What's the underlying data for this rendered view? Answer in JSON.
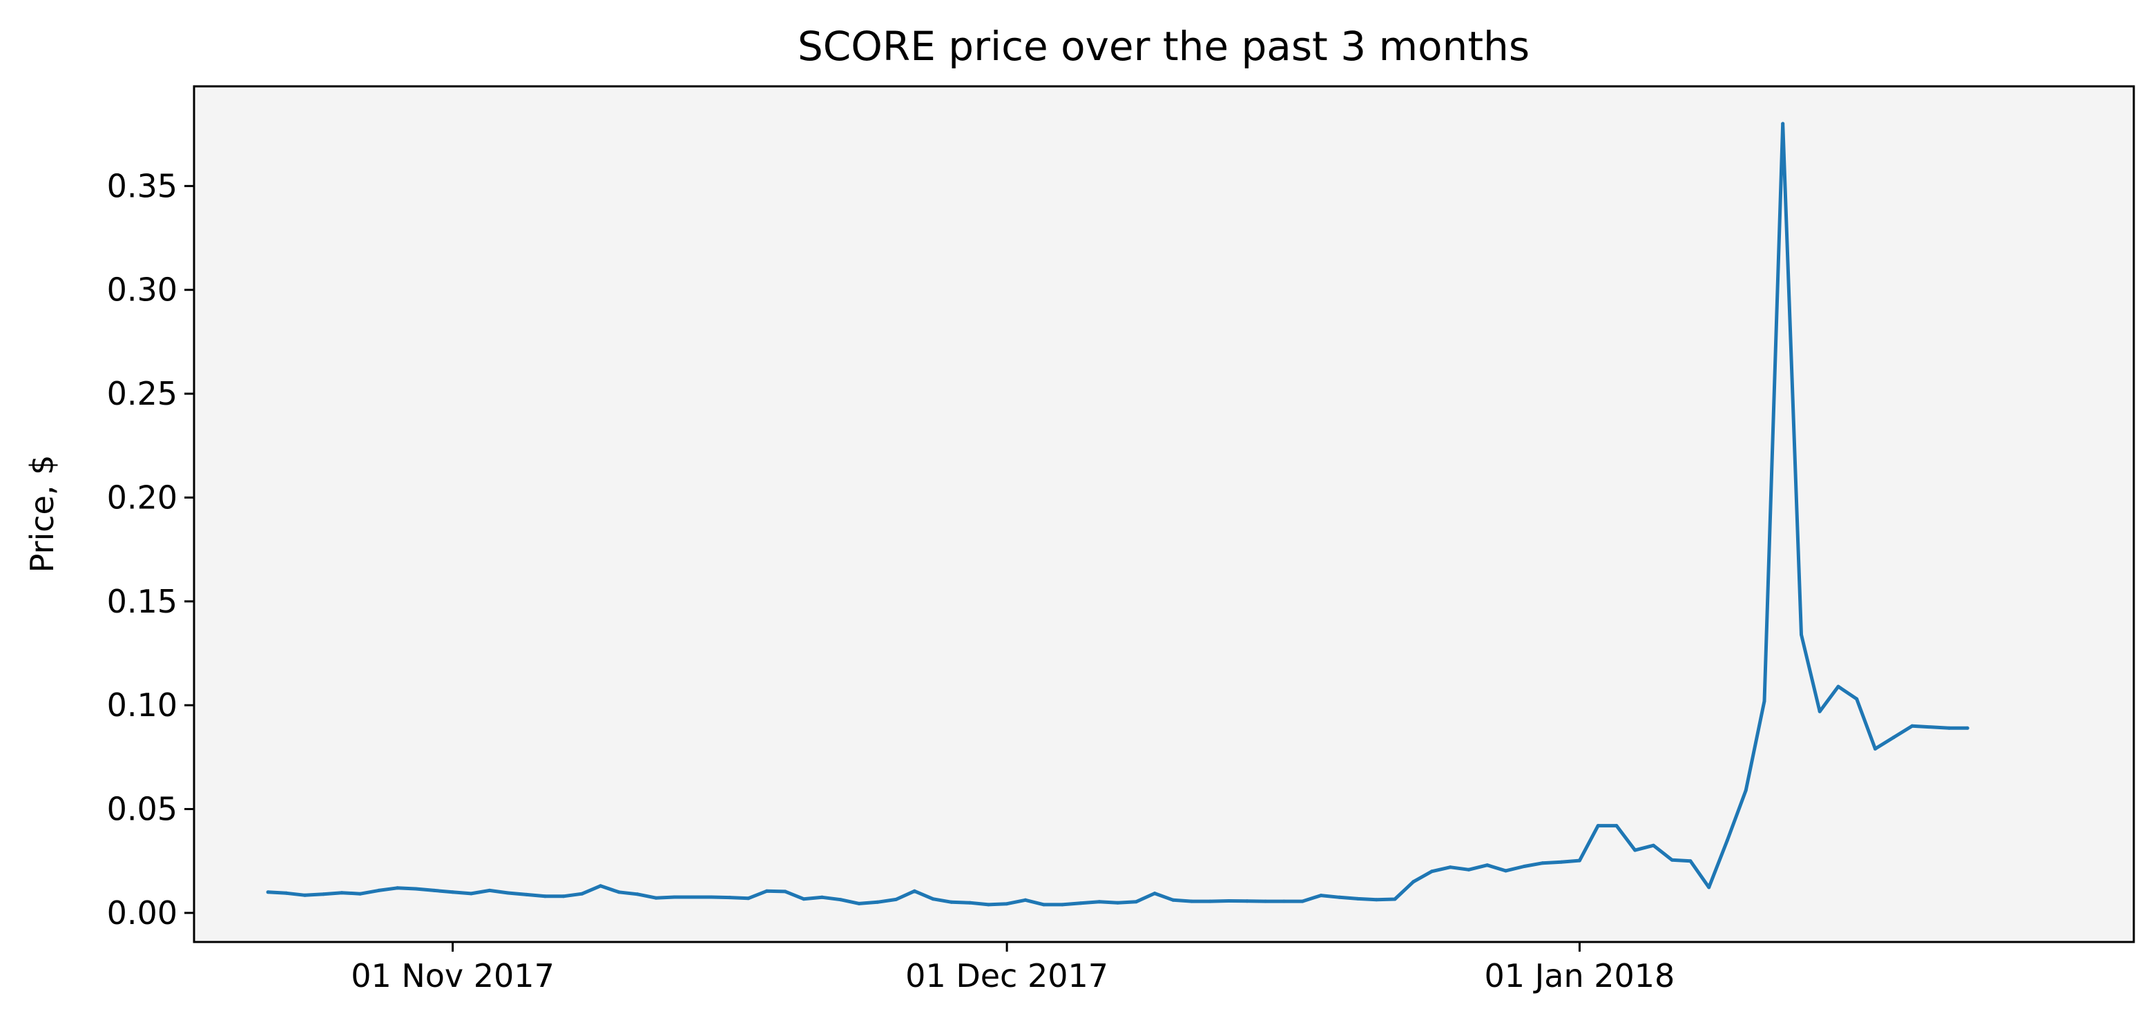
{
  "chart_data": {
    "type": "line",
    "title": "SCORE price over the past 3 months",
    "xlabel": "",
    "ylabel": "Price, $",
    "ylim": [
      -0.014,
      0.398
    ],
    "xlim": [
      "2017-10-18",
      "2018-01-31"
    ],
    "grid": false,
    "legend": "none",
    "background_color": "#f4f4f4",
    "line_color": "#1f77b4",
    "x_ticks": [
      {
        "date": "2017-11-01",
        "label": "01 Nov 2017"
      },
      {
        "date": "2017-12-01",
        "label": "01 Dec 2017"
      },
      {
        "date": "2018-01-01",
        "label": "01 Jan 2018"
      }
    ],
    "y_ticks": [
      {
        "value": 0.0,
        "label": "0.00"
      },
      {
        "value": 0.05,
        "label": "0.05"
      },
      {
        "value": 0.1,
        "label": "0.10"
      },
      {
        "value": 0.15,
        "label": "0.15"
      },
      {
        "value": 0.2,
        "label": "0.20"
      },
      {
        "value": 0.25,
        "label": "0.25"
      },
      {
        "value": 0.3,
        "label": "0.30"
      },
      {
        "value": 0.35,
        "label": "0.35"
      }
    ],
    "series": [
      {
        "x": [
          "2017-10-22",
          "2017-10-23",
          "2017-10-24",
          "2017-10-25",
          "2017-10-26",
          "2017-10-27",
          "2017-10-28",
          "2017-10-29",
          "2017-10-30",
          "2017-10-31",
          "2017-11-01",
          "2017-11-02",
          "2017-11-03",
          "2017-11-04",
          "2017-11-05",
          "2017-11-06",
          "2017-11-07",
          "2017-11-08",
          "2017-11-09",
          "2017-11-10",
          "2017-11-11",
          "2017-11-12",
          "2017-11-13",
          "2017-11-14",
          "2017-11-15",
          "2017-11-16",
          "2017-11-17",
          "2017-11-18",
          "2017-11-19",
          "2017-11-20",
          "2017-11-21",
          "2017-11-22",
          "2017-11-23",
          "2017-11-24",
          "2017-11-25",
          "2017-11-26",
          "2017-11-27",
          "2017-11-28",
          "2017-11-29",
          "2017-11-30",
          "2017-12-01",
          "2017-12-02",
          "2017-12-03",
          "2017-12-04",
          "2017-12-05",
          "2017-12-06",
          "2017-12-07",
          "2017-12-08",
          "2017-12-09",
          "2017-12-10",
          "2017-12-11",
          "2017-12-12",
          "2017-12-13",
          "2017-12-14",
          "2017-12-15",
          "2017-12-16",
          "2017-12-17",
          "2017-12-18",
          "2017-12-19",
          "2017-12-20",
          "2017-12-21",
          "2017-12-22",
          "2017-12-23",
          "2017-12-24",
          "2017-12-25",
          "2017-12-26",
          "2017-12-27",
          "2017-12-28",
          "2017-12-29",
          "2017-12-30",
          "2017-12-31",
          "2018-01-01",
          "2018-01-02",
          "2018-01-03",
          "2018-01-04",
          "2018-01-05",
          "2018-01-06",
          "2018-01-07",
          "2018-01-08",
          "2018-01-09",
          "2018-01-10",
          "2018-01-11",
          "2018-01-12",
          "2018-01-13",
          "2018-01-14",
          "2018-01-15",
          "2018-01-16",
          "2018-01-17",
          "2018-01-18",
          "2018-01-19",
          "2018-01-21",
          "2018-01-22"
        ],
        "values": [
          0.01,
          0.0095,
          0.0085,
          0.009,
          0.0097,
          0.0092,
          0.0108,
          0.012,
          0.0116,
          0.0108,
          0.01,
          0.0093,
          0.0108,
          0.0096,
          0.0088,
          0.008,
          0.008,
          0.0092,
          0.013,
          0.01,
          0.009,
          0.0072,
          0.0076,
          0.0076,
          0.0076,
          0.0074,
          0.007,
          0.0105,
          0.0103,
          0.0067,
          0.0075,
          0.0064,
          0.0045,
          0.0052,
          0.0065,
          0.0105,
          0.0067,
          0.0052,
          0.0049,
          0.004,
          0.0044,
          0.0062,
          0.004,
          0.004,
          0.0047,
          0.0054,
          0.0049,
          0.0054,
          0.0094,
          0.0062,
          0.0056,
          0.0056,
          0.0058,
          0.0057,
          0.0056,
          0.0056,
          0.0056,
          0.0084,
          0.0075,
          0.0068,
          0.0064,
          0.0066,
          0.015,
          0.02,
          0.022,
          0.0208,
          0.023,
          0.0203,
          0.0224,
          0.024,
          0.0245,
          0.0252,
          0.042,
          0.042,
          0.0302,
          0.0325,
          0.0255,
          0.025,
          0.0123,
          0.035,
          0.059,
          0.102,
          0.38,
          0.134,
          0.097,
          0.109,
          0.103,
          0.079,
          0.0845,
          0.09,
          0.089,
          0.089
        ]
      }
    ]
  }
}
